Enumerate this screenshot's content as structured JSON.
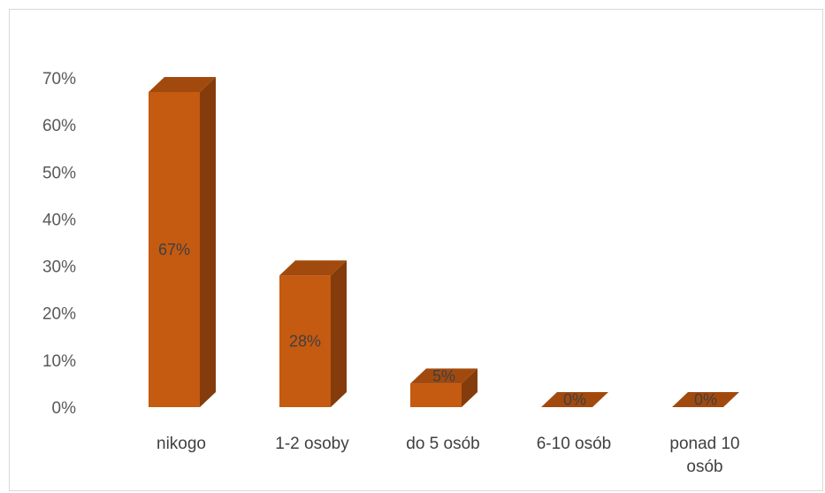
{
  "chart_data": {
    "type": "bar",
    "style": "3d-column",
    "categories": [
      "nikogo",
      "1-2 osoby",
      "do 5 osób",
      "6-10 osób",
      "ponad 10 osób"
    ],
    "category_lines": [
      [
        "nikogo"
      ],
      [
        "1-2 osoby"
      ],
      [
        "do 5 osób"
      ],
      [
        "6-10 osób"
      ],
      [
        "ponad 10",
        "osób"
      ]
    ],
    "values": [
      0.67,
      0.28,
      0.05,
      0.0,
      0.0
    ],
    "data_labels": [
      "67%",
      "28%",
      "5%",
      "0%",
      "0%"
    ],
    "yticks": [
      "0%",
      "10%",
      "20%",
      "30%",
      "40%",
      "50%",
      "60%",
      "70%"
    ],
    "ylim": [
      0,
      0.7
    ],
    "grid": false,
    "legend": "none",
    "title": "",
    "xlabel": "",
    "ylabel": "",
    "colors": {
      "front": "#c55a11",
      "side": "#843c0c",
      "top": "#a24a0e"
    }
  }
}
